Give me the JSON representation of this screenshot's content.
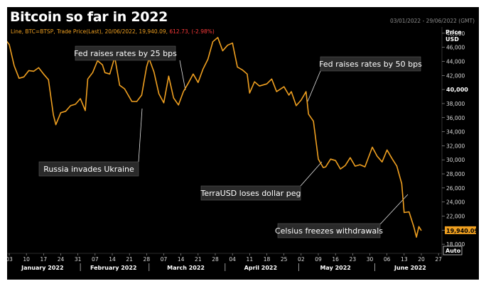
{
  "title": "Bitcoin so far in 2022",
  "date_range": "03/01/2022 - 29/06/2022 (GMT)",
  "info": {
    "prefix": "Line, BTC=BTSP, Trade Price(Last), 20/06/2022, 19,940.09,",
    "change": "612.73, (-2.98%)"
  },
  "axis": {
    "price_label": "Price",
    "unit_label": "USD",
    "last_value_label": "19,940.09",
    "auto_label": "Auto"
  },
  "annotations": [
    {
      "text": "Fed raises rates by 25 bps"
    },
    {
      "text": "Fed raises rates by 50 bps"
    },
    {
      "text": "Russia invades Ukraine"
    },
    {
      "text": "TerraUSD loses dollar peg"
    },
    {
      "text": "Celsius freezes withdrawals"
    }
  ],
  "colors": {
    "line": "#f0a020",
    "background": "#000000",
    "label_box": "#2a2a2a",
    "last_value_box": "#f0a020"
  },
  "chart_data": {
    "type": "line",
    "title": "Bitcoin so far in 2022",
    "xlabel": "",
    "ylabel": "Price USD",
    "ylim": [
      17000,
      49500
    ],
    "grid": false,
    "y_ticks": [
      {
        "value": 48000,
        "label": "48,000"
      },
      {
        "value": 46000,
        "label": "46,000"
      },
      {
        "value": 44000,
        "label": "44,000"
      },
      {
        "value": 42000,
        "label": "42,000"
      },
      {
        "value": 40000,
        "label": "40,000"
      },
      {
        "value": 38000,
        "label": "38,000"
      },
      {
        "value": 36000,
        "label": "36,000"
      },
      {
        "value": 34000,
        "label": "34,000"
      },
      {
        "value": 32000,
        "label": "32,000"
      },
      {
        "value": 30000,
        "label": "30,000"
      },
      {
        "value": 28000,
        "label": "28,000"
      },
      {
        "value": 26000,
        "label": "26,000"
      },
      {
        "value": 24000,
        "label": "24,000"
      },
      {
        "value": 22000,
        "label": "22,000"
      },
      {
        "value": 20000,
        "label": "20,000"
      },
      {
        "value": 18000,
        "label": "18,000"
      }
    ],
    "x_ticks": [
      {
        "date": "2022-01-03",
        "label": "03"
      },
      {
        "date": "2022-01-10",
        "label": "10"
      },
      {
        "date": "2022-01-17",
        "label": "17"
      },
      {
        "date": "2022-01-24",
        "label": "24"
      },
      {
        "date": "2022-01-31",
        "label": "31"
      },
      {
        "date": "2022-02-07",
        "label": "07"
      },
      {
        "date": "2022-02-14",
        "label": "14"
      },
      {
        "date": "2022-02-21",
        "label": "21"
      },
      {
        "date": "2022-02-28",
        "label": "28"
      },
      {
        "date": "2022-03-07",
        "label": "07"
      },
      {
        "date": "2022-03-14",
        "label": "14"
      },
      {
        "date": "2022-03-21",
        "label": "21"
      },
      {
        "date": "2022-03-28",
        "label": "28"
      },
      {
        "date": "2022-04-04",
        "label": "04"
      },
      {
        "date": "2022-04-11",
        "label": "11"
      },
      {
        "date": "2022-04-18",
        "label": "18"
      },
      {
        "date": "2022-04-25",
        "label": "25"
      },
      {
        "date": "2022-05-02",
        "label": "02"
      },
      {
        "date": "2022-05-09",
        "label": "09"
      },
      {
        "date": "2022-05-16",
        "label": "16"
      },
      {
        "date": "2022-05-23",
        "label": "23"
      },
      {
        "date": "2022-05-30",
        "label": "30"
      },
      {
        "date": "2022-06-06",
        "label": "06"
      },
      {
        "date": "2022-06-13",
        "label": "13"
      },
      {
        "date": "2022-06-20",
        "label": "20"
      },
      {
        "date": "2022-06-27",
        "label": "27"
      }
    ],
    "months": [
      {
        "label": "January 2022",
        "start": "2022-01-01",
        "end": "2022-01-31"
      },
      {
        "label": "February 2022",
        "start": "2022-02-01",
        "end": "2022-02-28"
      },
      {
        "label": "March 2022",
        "start": "2022-03-01",
        "end": "2022-03-31"
      },
      {
        "label": "April 2022",
        "start": "2022-04-01",
        "end": "2022-04-30"
      },
      {
        "label": "May 2022",
        "start": "2022-05-01",
        "end": "2022-05-31"
      },
      {
        "label": "June 2022",
        "start": "2022-06-01",
        "end": "2022-06-30"
      }
    ],
    "series": [
      {
        "points": [
          [
            "2022-01-01",
            47300
          ],
          [
            "2022-01-03",
            46400
          ],
          [
            "2022-01-05",
            43400
          ],
          [
            "2022-01-07",
            41600
          ],
          [
            "2022-01-09",
            41800
          ],
          [
            "2022-01-11",
            42700
          ],
          [
            "2022-01-13",
            42600
          ],
          [
            "2022-01-15",
            43100
          ],
          [
            "2022-01-17",
            42200
          ],
          [
            "2022-01-19",
            41400
          ],
          [
            "2022-01-21",
            36400
          ],
          [
            "2022-01-22",
            35000
          ],
          [
            "2022-01-24",
            36700
          ],
          [
            "2022-01-26",
            36900
          ],
          [
            "2022-01-28",
            37700
          ],
          [
            "2022-01-30",
            37900
          ],
          [
            "2022-02-01",
            38700
          ],
          [
            "2022-02-03",
            37000
          ],
          [
            "2022-02-04",
            41500
          ],
          [
            "2022-02-06",
            42400
          ],
          [
            "2022-02-08",
            44100
          ],
          [
            "2022-02-10",
            43500
          ],
          [
            "2022-02-11",
            42400
          ],
          [
            "2022-02-13",
            42200
          ],
          [
            "2022-02-15",
            44600
          ],
          [
            "2022-02-17",
            40600
          ],
          [
            "2022-02-19",
            40100
          ],
          [
            "2022-02-22",
            38300
          ],
          [
            "2022-02-24",
            38300
          ],
          [
            "2022-02-26",
            39200
          ],
          [
            "2022-02-28",
            43200
          ],
          [
            "2022-03-01",
            44400
          ],
          [
            "2022-03-03",
            42500
          ],
          [
            "2022-03-05",
            39400
          ],
          [
            "2022-03-07",
            38100
          ],
          [
            "2022-03-09",
            41900
          ],
          [
            "2022-03-11",
            38800
          ],
          [
            "2022-03-13",
            37800
          ],
          [
            "2022-03-15",
            39700
          ],
          [
            "2022-03-17",
            40900
          ],
          [
            "2022-03-19",
            42200
          ],
          [
            "2022-03-21",
            41000
          ],
          [
            "2022-03-23",
            42900
          ],
          [
            "2022-03-25",
            44300
          ],
          [
            "2022-03-27",
            46800
          ],
          [
            "2022-03-29",
            47400
          ],
          [
            "2022-03-31",
            45500
          ],
          [
            "2022-04-02",
            46300
          ],
          [
            "2022-04-04",
            46600
          ],
          [
            "2022-04-06",
            43200
          ],
          [
            "2022-04-08",
            42800
          ],
          [
            "2022-04-10",
            42200
          ],
          [
            "2022-04-11",
            39500
          ],
          [
            "2022-04-13",
            41100
          ],
          [
            "2022-04-15",
            40500
          ],
          [
            "2022-04-18",
            40800
          ],
          [
            "2022-04-20",
            41500
          ],
          [
            "2022-04-22",
            39700
          ],
          [
            "2022-04-25",
            40400
          ],
          [
            "2022-04-27",
            39200
          ],
          [
            "2022-04-28",
            39700
          ],
          [
            "2022-04-30",
            37700
          ],
          [
            "2022-05-02",
            38500
          ],
          [
            "2022-05-04",
            39700
          ],
          [
            "2022-05-05",
            36500
          ],
          [
            "2022-05-07",
            35500
          ],
          [
            "2022-05-09",
            30100
          ],
          [
            "2022-05-11",
            28900
          ],
          [
            "2022-05-12",
            29000
          ],
          [
            "2022-05-14",
            30100
          ],
          [
            "2022-05-16",
            29900
          ],
          [
            "2022-05-18",
            28700
          ],
          [
            "2022-05-20",
            29200
          ],
          [
            "2022-05-22",
            30300
          ],
          [
            "2022-05-24",
            29100
          ],
          [
            "2022-05-26",
            29300
          ],
          [
            "2022-05-28",
            29000
          ],
          [
            "2022-05-31",
            31800
          ],
          [
            "2022-06-02",
            30500
          ],
          [
            "2022-06-04",
            29700
          ],
          [
            "2022-06-06",
            31400
          ],
          [
            "2022-06-08",
            30200
          ],
          [
            "2022-06-10",
            29100
          ],
          [
            "2022-06-12",
            26600
          ],
          [
            "2022-06-13",
            22500
          ],
          [
            "2022-06-15",
            22600
          ],
          [
            "2022-06-17",
            20400
          ],
          [
            "2022-06-18",
            19000
          ],
          [
            "2022-06-19",
            20500
          ],
          [
            "2022-06-20",
            19940
          ]
        ]
      }
    ]
  }
}
